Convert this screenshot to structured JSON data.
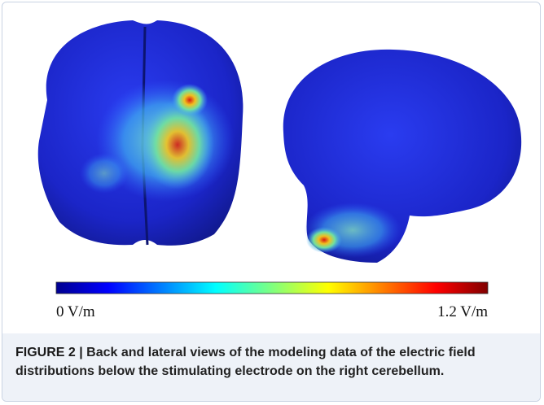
{
  "figure": {
    "colorbar": {
      "min_label": "0 V/m",
      "max_label": "1.2 V/m"
    },
    "caption": {
      "label": "FIGURE 2 |",
      "text": "Back and lateral views of the modeling data of the electric field distributions below the stimulating electrode on the right cerebellum."
    }
  }
}
